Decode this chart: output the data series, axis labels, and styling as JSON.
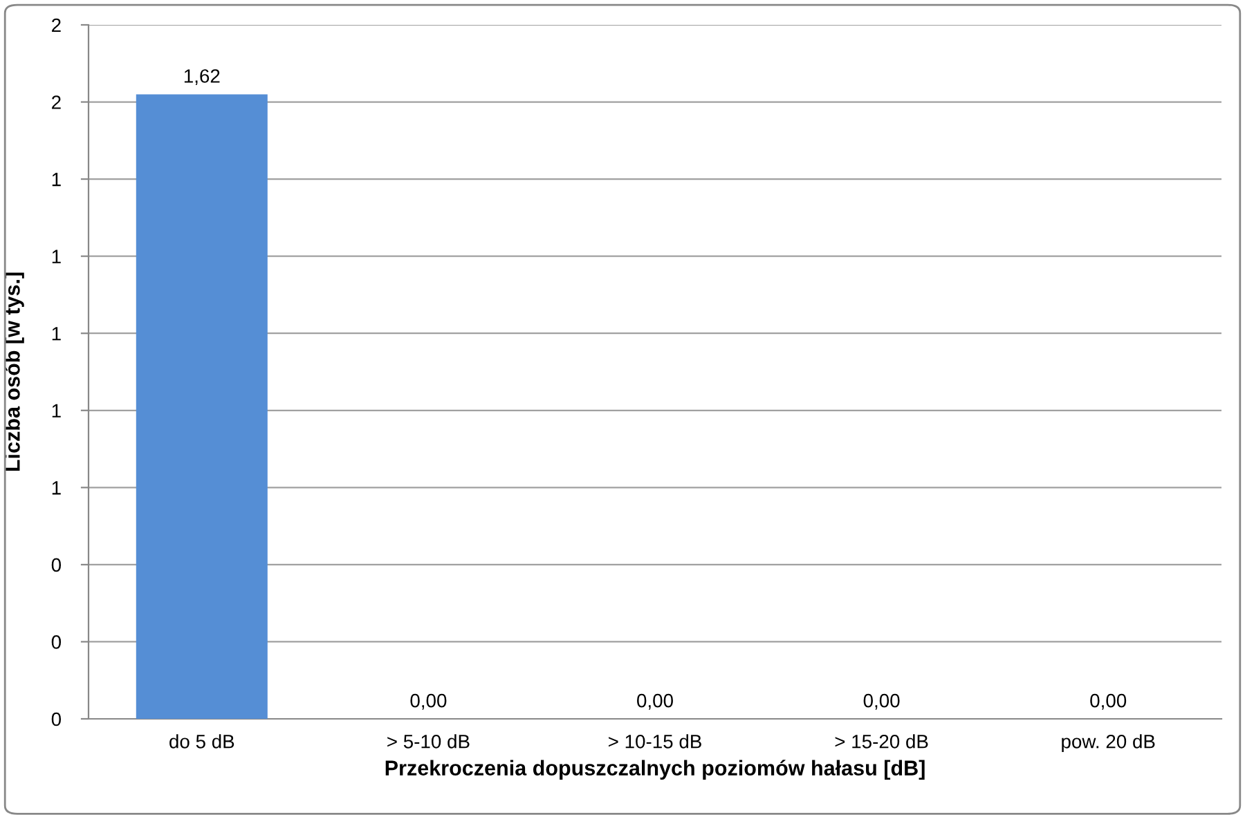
{
  "chart_data": {
    "type": "bar",
    "xlabel": "Przekroczenia dopuszczalnych poziomów hałasu [dB]",
    "ylabel": "Liczba osób [w tys.]",
    "categories": [
      "do 5 dB",
      "> 5-10 dB",
      "> 10-15 dB",
      "> 15-20 dB",
      "pow. 20 dB"
    ],
    "values": [
      1.62,
      0,
      0,
      0,
      0
    ],
    "color": "#558ed5",
    "value_labels": [
      "1,62",
      "0,00",
      "0,00",
      "0,00",
      "0,00"
    ],
    "ylim": [
      0,
      1.8
    ],
    "yticks": [
      {
        "value": 0,
        "label": "0"
      },
      {
        "value": 0.2,
        "label": "0"
      },
      {
        "value": 0.4,
        "label": "0"
      },
      {
        "value": 0.6,
        "label": "1"
      },
      {
        "value": 0.8,
        "label": "1"
      },
      {
        "value": 1.0,
        "label": "1"
      },
      {
        "value": 1.2,
        "label": "1"
      },
      {
        "value": 1.4,
        "label": "1"
      },
      {
        "value": 1.6,
        "label": "2"
      },
      {
        "value": 1.8,
        "label": "2"
      }
    ],
    "grid": "y"
  }
}
